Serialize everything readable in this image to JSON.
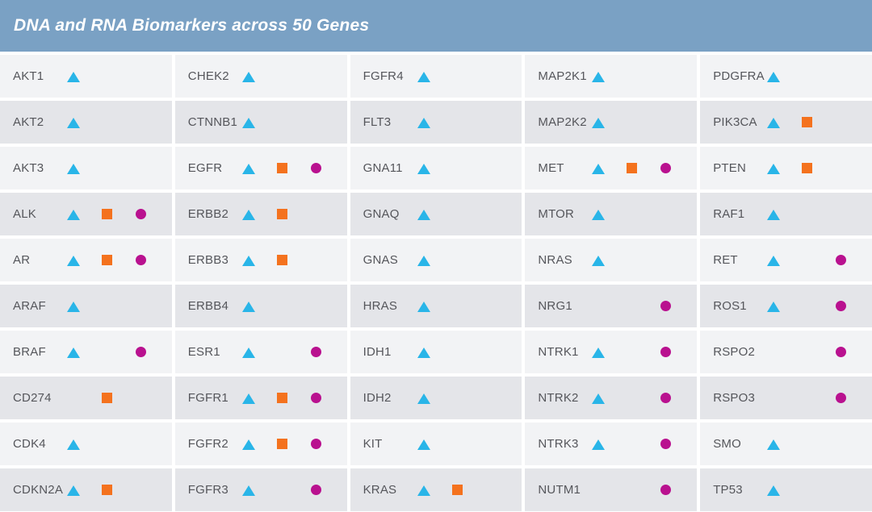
{
  "header": {
    "title": "DNA and RNA Biomarkers across 50 Genes",
    "background": "#7aa1c4",
    "text_color": "#ffffff"
  },
  "markers": {
    "triangle": {
      "color": "#29b5e8"
    },
    "square": {
      "color": "#f4721e"
    },
    "circle": {
      "color": "#b9118f"
    }
  },
  "chart_data": {
    "type": "table",
    "title": "DNA and RNA Biomarkers across 50 Genes",
    "layout": {
      "columns": 5,
      "rows": 10,
      "row_color_odd": "#f2f3f5",
      "row_color_even": "#e4e5e9",
      "gene_text_color": "#55565b"
    },
    "marker_legend": {
      "triangle": "#29b5e8",
      "square": "#f4721e",
      "circle": "#b9118f"
    },
    "columns": [
      {
        "genes": [
          {
            "name": "AKT1",
            "markers": [
              "triangle"
            ]
          },
          {
            "name": "AKT2",
            "markers": [
              "triangle"
            ]
          },
          {
            "name": "AKT3",
            "markers": [
              "triangle"
            ]
          },
          {
            "name": "ALK",
            "markers": [
              "triangle",
              "square",
              "circle"
            ]
          },
          {
            "name": "AR",
            "markers": [
              "triangle",
              "square",
              "circle"
            ]
          },
          {
            "name": "ARAF",
            "markers": [
              "triangle"
            ]
          },
          {
            "name": "BRAF",
            "markers": [
              "triangle",
              "circle"
            ]
          },
          {
            "name": "CD274",
            "markers": [
              "square"
            ]
          },
          {
            "name": "CDK4",
            "markers": [
              "triangle"
            ]
          },
          {
            "name": "CDKN2A",
            "markers": [
              "triangle",
              "square"
            ]
          }
        ]
      },
      {
        "genes": [
          {
            "name": "CHEK2",
            "markers": [
              "triangle"
            ]
          },
          {
            "name": "CTNNB1",
            "markers": [
              "triangle"
            ]
          },
          {
            "name": "EGFR",
            "markers": [
              "triangle",
              "square",
              "circle"
            ]
          },
          {
            "name": "ERBB2",
            "markers": [
              "triangle",
              "square"
            ]
          },
          {
            "name": "ERBB3",
            "markers": [
              "triangle",
              "square"
            ]
          },
          {
            "name": "ERBB4",
            "markers": [
              "triangle"
            ]
          },
          {
            "name": "ESR1",
            "markers": [
              "triangle",
              "circle"
            ]
          },
          {
            "name": "FGFR1",
            "markers": [
              "triangle",
              "square",
              "circle"
            ]
          },
          {
            "name": "FGFR2",
            "markers": [
              "triangle",
              "square",
              "circle"
            ]
          },
          {
            "name": "FGFR3",
            "markers": [
              "triangle",
              "circle"
            ]
          }
        ]
      },
      {
        "genes": [
          {
            "name": "FGFR4",
            "markers": [
              "triangle"
            ]
          },
          {
            "name": "FLT3",
            "markers": [
              "triangle"
            ]
          },
          {
            "name": "GNA11",
            "markers": [
              "triangle"
            ]
          },
          {
            "name": "GNAQ",
            "markers": [
              "triangle"
            ]
          },
          {
            "name": "GNAS",
            "markers": [
              "triangle"
            ]
          },
          {
            "name": "HRAS",
            "markers": [
              "triangle"
            ]
          },
          {
            "name": "IDH1",
            "markers": [
              "triangle"
            ]
          },
          {
            "name": "IDH2",
            "markers": [
              "triangle"
            ]
          },
          {
            "name": "KIT",
            "markers": [
              "triangle"
            ]
          },
          {
            "name": "KRAS",
            "markers": [
              "triangle",
              "square"
            ]
          }
        ]
      },
      {
        "genes": [
          {
            "name": "MAP2K1",
            "markers": [
              "triangle"
            ]
          },
          {
            "name": "MAP2K2",
            "markers": [
              "triangle"
            ]
          },
          {
            "name": "MET",
            "markers": [
              "triangle",
              "square",
              "circle"
            ]
          },
          {
            "name": "MTOR",
            "markers": [
              "triangle"
            ]
          },
          {
            "name": "NRAS",
            "markers": [
              "triangle"
            ]
          },
          {
            "name": "NRG1",
            "markers": [
              "circle"
            ]
          },
          {
            "name": "NTRK1",
            "markers": [
              "triangle",
              "circle"
            ]
          },
          {
            "name": "NTRK2",
            "markers": [
              "triangle",
              "circle"
            ]
          },
          {
            "name": "NTRK3",
            "markers": [
              "triangle",
              "circle"
            ]
          },
          {
            "name": "NUTM1",
            "markers": [
              "circle"
            ]
          }
        ]
      },
      {
        "genes": [
          {
            "name": "PDGFRA",
            "markers": [
              "triangle"
            ]
          },
          {
            "name": "PIK3CA",
            "markers": [
              "triangle",
              "square"
            ]
          },
          {
            "name": "PTEN",
            "markers": [
              "triangle",
              "square"
            ]
          },
          {
            "name": "RAF1",
            "markers": [
              "triangle"
            ]
          },
          {
            "name": "RET",
            "markers": [
              "triangle",
              "circle"
            ]
          },
          {
            "name": "ROS1",
            "markers": [
              "triangle",
              "circle"
            ]
          },
          {
            "name": "RSPO2",
            "markers": [
              "circle"
            ]
          },
          {
            "name": "RSPO3",
            "markers": [
              "circle"
            ]
          },
          {
            "name": "SMO",
            "markers": [
              "triangle"
            ]
          },
          {
            "name": "TP53",
            "markers": [
              "triangle"
            ]
          }
        ]
      }
    ]
  }
}
